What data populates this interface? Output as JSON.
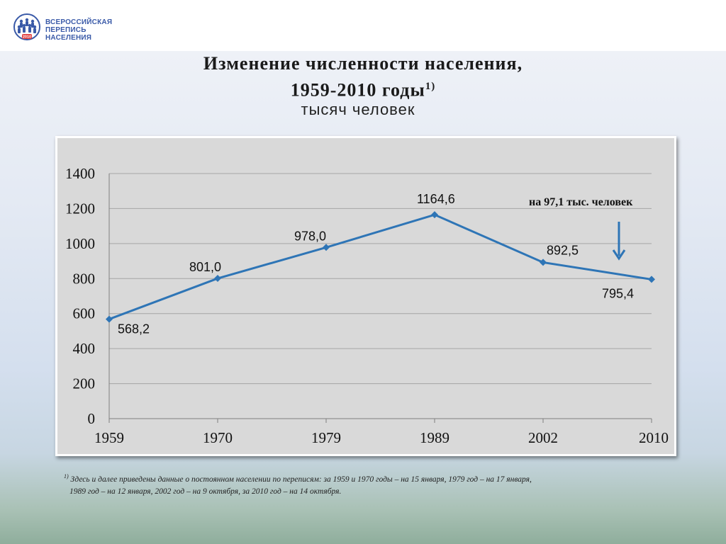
{
  "logo": {
    "line1": "ВСЕРОССИЙСКАЯ",
    "line2": "ПЕРЕПИСЬ НАСЕЛЕНИЯ",
    "year": "2010",
    "icon": "census-people-logo-icon"
  },
  "header": {
    "title_line1": "Изменение численности населения,",
    "title_line2": "1959-2010 годы",
    "title_sup": "1)",
    "subtitle": "тысяч человек"
  },
  "annotation": {
    "text": "на 97,1 тыс. человек",
    "icon": "down-arrow-icon"
  },
  "colors": {
    "line": "#2e75b6",
    "plot_bg": "#d9d9d9",
    "grid": "#a6a6a6"
  },
  "chart_data": {
    "type": "line",
    "categories": [
      "1959",
      "1970",
      "1979",
      "1989",
      "2002",
      "2010"
    ],
    "values": [
      568.2,
      801.0,
      978.0,
      1164.6,
      892.5,
      795.4
    ],
    "data_labels": [
      "568,2",
      "801,0",
      "978,0",
      "1164,6",
      "892,5",
      "795,4"
    ],
    "y_ticks": [
      0,
      200,
      400,
      600,
      800,
      1000,
      1200,
      1400
    ],
    "ylim": [
      0,
      1400
    ],
    "grid": true,
    "legend": "none"
  },
  "footnote": {
    "marker": "1)",
    "line1": "Здесь и далее приведены данные о постоянном населении по переписям: за 1959 и 1970 годы – на 15 января, 1979 год – на 17 января,",
    "line2": "1989 год – на 12 января, 2002 год – на 9 октября, за 2010 год – на 14 октября."
  }
}
